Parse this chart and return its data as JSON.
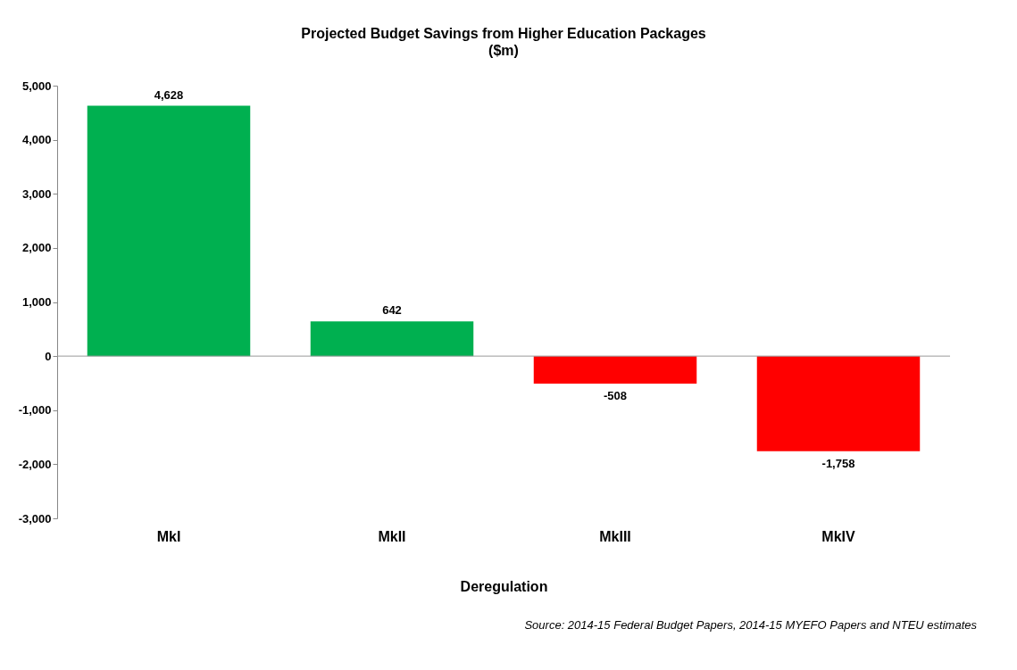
{
  "chart_data": {
    "type": "bar",
    "title": "Projected Budget Savings from Higher Education Packages",
    "subtitle": "($m)",
    "xlabel": "Deregulation",
    "categories": [
      "MkI",
      "MkII",
      "MkIII",
      "MkIV"
    ],
    "values": [
      4628,
      642,
      -508,
      -1758
    ],
    "colors": [
      "#00b050",
      "#00b050",
      "#ff0000",
      "#ff0000"
    ],
    "ylim": [
      -3000,
      5000
    ],
    "yticks": [
      {
        "value": -3000,
        "label": "-3,000"
      },
      {
        "value": -2000,
        "label": "-2,000"
      },
      {
        "value": -1000,
        "label": "-1,000"
      },
      0,
      {
        "value": 1000,
        "label": "1,000"
      },
      {
        "value": 2000,
        "label": "2,000"
      },
      {
        "value": 3000,
        "label": "3,000"
      },
      {
        "value": 4000,
        "label": "4,000"
      },
      {
        "value": 5000,
        "label": "5,000"
      }
    ],
    "value_labels": [
      "4,628",
      "642",
      "-508",
      "-1,758"
    ],
    "annotations": [
      "Source:  2014-15 Federal Budget Papers, 2014-15 MYEFO Papers and NTEU estimates"
    ]
  }
}
